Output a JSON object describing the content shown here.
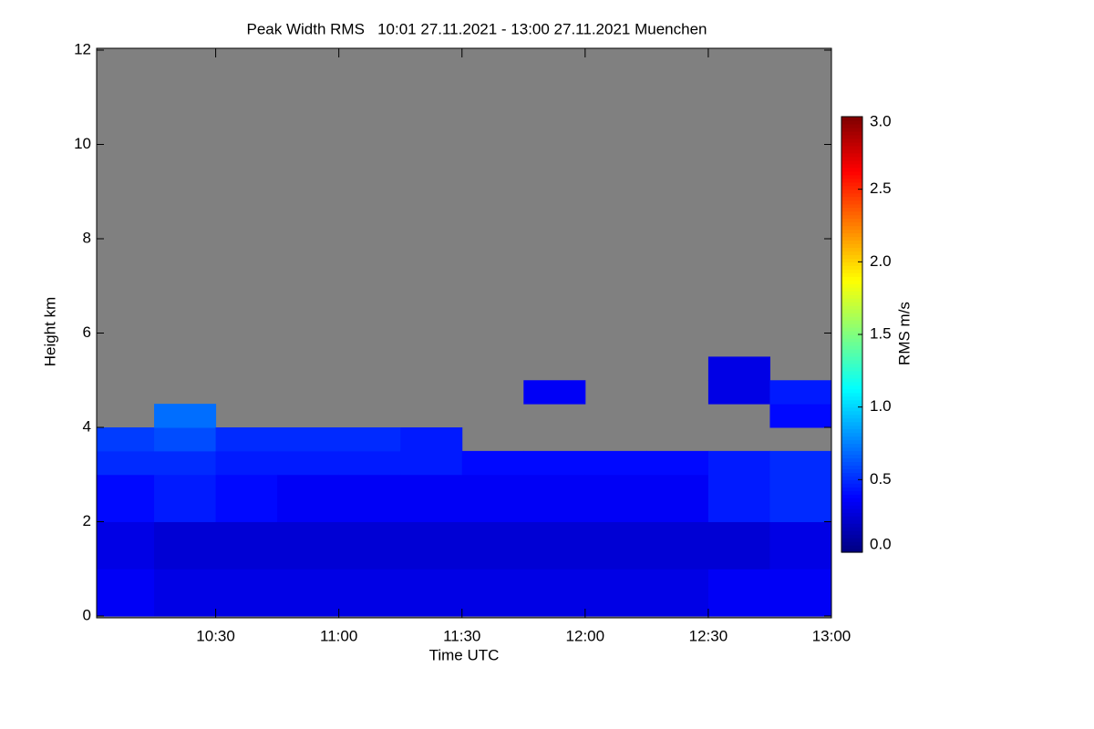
{
  "chart_data": {
    "type": "heatmap",
    "title": "Peak Width RMS   10:01 27.11.2021 - 13:00 27.11.2021 Muenchen",
    "xlabel": "Time UTC",
    "ylabel": "Height km",
    "colorbar_label": "RMS m/s",
    "colormap": "jet",
    "missing_color": "#808080",
    "xlim": [
      601,
      780
    ],
    "xticks": [
      {
        "value": 630,
        "label": "10:30"
      },
      {
        "value": 660,
        "label": "11:00"
      },
      {
        "value": 690,
        "label": "11:30"
      },
      {
        "value": 720,
        "label": "12:00"
      },
      {
        "value": 750,
        "label": "12:30"
      },
      {
        "value": 780,
        "label": "13:00"
      }
    ],
    "ylim": [
      0,
      12
    ],
    "yticks": [
      0,
      2,
      4,
      6,
      8,
      10,
      12
    ],
    "clim": [
      0,
      3
    ],
    "cticks": [
      {
        "value": 0,
        "label": "0.0"
      },
      {
        "value": 0.5,
        "label": "0.5"
      },
      {
        "value": 1,
        "label": "1.0"
      },
      {
        "value": 1.5,
        "label": "1.5"
      },
      {
        "value": 2,
        "label": "2.0"
      },
      {
        "value": 2.5,
        "label": "2.5"
      },
      {
        "value": 3,
        "label": "3.0"
      }
    ],
    "x_bins": [
      601,
      615,
      630,
      645,
      660,
      675,
      690,
      705,
      720,
      735,
      750,
      765,
      780
    ],
    "y_bins": [
      0,
      1,
      2,
      3,
      3.5,
      4,
      4.5,
      5,
      5.5
    ],
    "values": [
      [
        0.35,
        0.3,
        0.4,
        0.5,
        0.55,
        null,
        null,
        null
      ],
      [
        0.3,
        0.25,
        0.45,
        0.5,
        0.6,
        0.7,
        null,
        null
      ],
      [
        0.3,
        0.25,
        0.4,
        0.45,
        0.5,
        null,
        null,
        null
      ],
      [
        0.3,
        0.25,
        0.35,
        0.45,
        0.5,
        null,
        null,
        null
      ],
      [
        0.3,
        0.25,
        0.35,
        0.45,
        0.5,
        null,
        null,
        null
      ],
      [
        0.3,
        0.25,
        0.35,
        0.45,
        0.45,
        null,
        null,
        null
      ],
      [
        0.3,
        0.25,
        0.35,
        0.4,
        null,
        null,
        null,
        null
      ],
      [
        0.3,
        0.25,
        0.35,
        0.4,
        null,
        null,
        0.35,
        null
      ],
      [
        0.3,
        0.25,
        0.35,
        0.4,
        null,
        null,
        null,
        null
      ],
      [
        0.3,
        0.25,
        0.35,
        0.4,
        null,
        null,
        null,
        null
      ],
      [
        0.35,
        0.25,
        0.45,
        0.45,
        null,
        null,
        0.3,
        0.3
      ],
      [
        0.35,
        0.3,
        0.5,
        0.5,
        null,
        0.4,
        0.45,
        null
      ]
    ]
  }
}
